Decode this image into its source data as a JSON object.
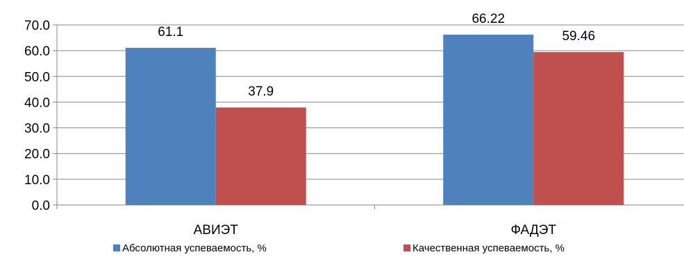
{
  "chart_data": {
    "type": "bar",
    "title": "",
    "xlabel": "",
    "ylabel": "",
    "categories": [
      "АВИЭТ",
      "ФАДЭТ"
    ],
    "series": [
      {
        "name": "Абсолютная успеваемость, %",
        "values": [
          61.1,
          66.22
        ],
        "labels": [
          "61.1",
          "66.22"
        ],
        "color": "#4F81BD"
      },
      {
        "name": "Качественная успеваемость, %",
        "values": [
          37.9,
          59.46
        ],
        "labels": [
          "37.9",
          "59.46"
        ],
        "color": "#C0504D"
      }
    ],
    "ylim": [
      0,
      70
    ],
    "yticks": [
      0,
      10,
      20,
      30,
      40,
      50,
      60,
      70
    ],
    "ytick_labels": [
      "0.0",
      "10.0",
      "20.0",
      "30.0",
      "40.0",
      "50.0",
      "60.0",
      "70.0"
    ],
    "grid": true,
    "legend": "bottom",
    "colors": {
      "grid": "#868686",
      "axis": "#868686"
    }
  }
}
